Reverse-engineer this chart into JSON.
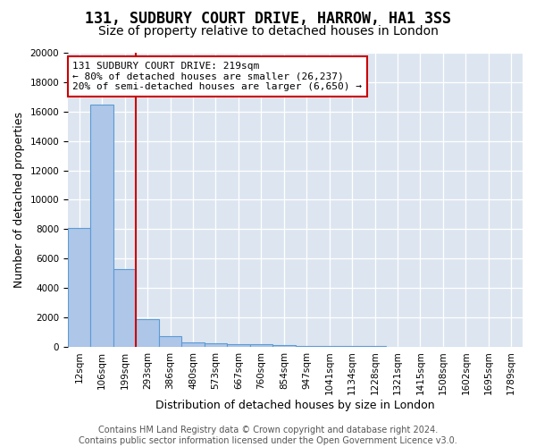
{
  "title": "131, SUDBURY COURT DRIVE, HARROW, HA1 3SS",
  "subtitle": "Size of property relative to detached houses in London",
  "xlabel": "Distribution of detached houses by size in London",
  "ylabel": "Number of detached properties",
  "footer_line1": "Contains HM Land Registry data © Crown copyright and database right 2024.",
  "footer_line2": "Contains public sector information licensed under the Open Government Licence v3.0.",
  "annotation_line1": "131 SUDBURY COURT DRIVE: 219sqm",
  "annotation_line2": "← 80% of detached houses are smaller (26,237)",
  "annotation_line3": "20% of semi-detached houses are larger (6,650) →",
  "bins": [
    "12sqm",
    "106sqm",
    "199sqm",
    "293sqm",
    "386sqm",
    "480sqm",
    "573sqm",
    "667sqm",
    "760sqm",
    "854sqm",
    "947sqm",
    "1041sqm",
    "1134sqm",
    "1228sqm",
    "1321sqm",
    "1415sqm",
    "1508sqm",
    "1602sqm",
    "1695sqm",
    "1789sqm"
  ],
  "values": [
    8100,
    16500,
    5300,
    1850,
    700,
    300,
    230,
    200,
    170,
    120,
    60,
    50,
    40,
    30,
    20,
    15,
    10,
    8,
    5,
    3
  ],
  "bar_color": "#aec6e8",
  "bar_edge_color": "#5b9bd5",
  "red_line_bin_index": 2,
  "red_line_color": "#cc0000",
  "annotation_box_edgecolor": "#cc0000",
  "background_color": "#dde6f0",
  "ylim": [
    0,
    20000
  ],
  "yticks": [
    0,
    2000,
    4000,
    6000,
    8000,
    10000,
    12000,
    14000,
    16000,
    18000,
    20000
  ],
  "title_fontsize": 12,
  "subtitle_fontsize": 10,
  "axis_label_fontsize": 9,
  "tick_fontsize": 7.5,
  "annotation_fontsize": 8,
  "footer_fontsize": 7
}
